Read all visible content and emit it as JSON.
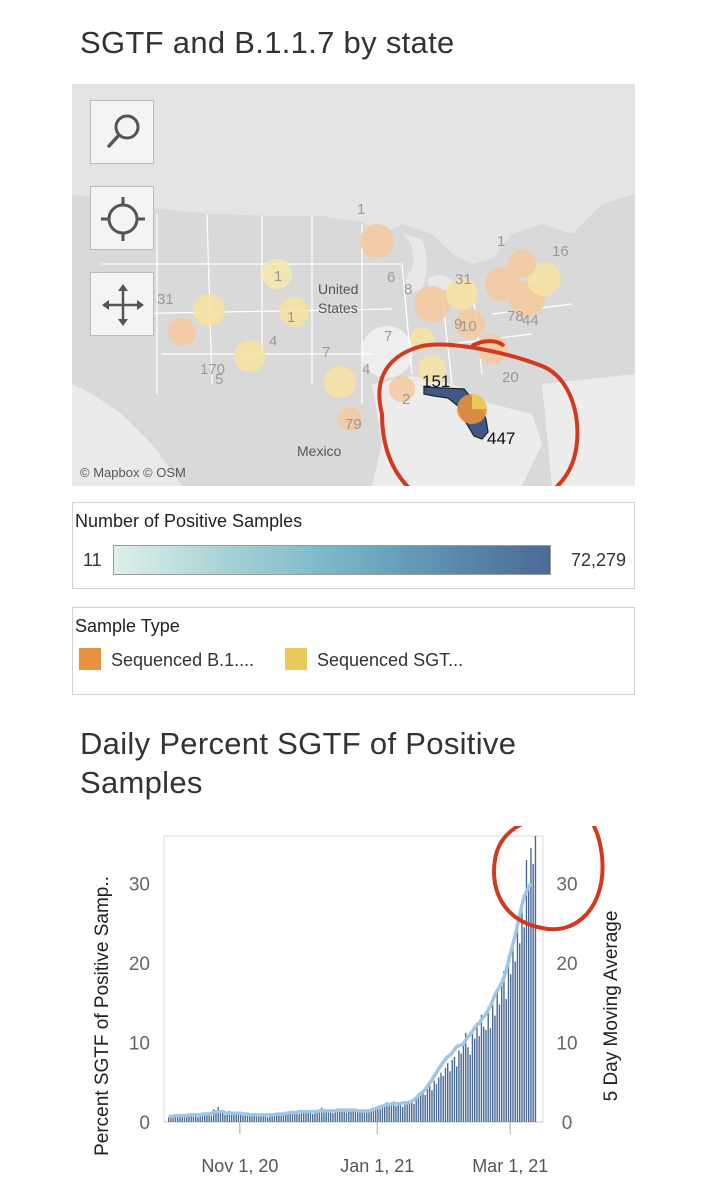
{
  "map_section": {
    "title": "SGTF and B.1.1.7 by state",
    "country_labels": {
      "us": "United States",
      "mexico": "Mexico"
    },
    "attribution": "© Mapbox  © OSM",
    "state_labels": [
      "1",
      "1",
      "1",
      "31",
      "1",
      "16",
      "6",
      "8",
      "31",
      "7",
      "9",
      "10",
      "78",
      "44",
      "4",
      "170",
      "5",
      "7",
      "4",
      "2",
      "151",
      "20",
      "79",
      "447"
    ],
    "controls": [
      {
        "name": "search",
        "icon": "search-icon"
      },
      {
        "name": "locate",
        "icon": "crosshair-icon"
      },
      {
        "name": "pan",
        "icon": "move-arrows-icon"
      }
    ]
  },
  "color_legend": {
    "title": "Number of Positive Samples",
    "min": "11",
    "max": "72,279"
  },
  "type_legend": {
    "title": "Sample Type",
    "items": [
      {
        "label": "Sequenced B.1....",
        "color": "#e8913e"
      },
      {
        "label": "Sequenced SGT...",
        "color": "#e9c95a"
      }
    ]
  },
  "chart_data": {
    "type": "bar",
    "title": "Daily Percent SGTF of Positive Samples",
    "ylabel": "Percent SGTF of Positive Samp..",
    "y2label": "5 Day Moving Average",
    "x_ticks": [
      "Nov 1, 20",
      "Jan 1, 21",
      "Mar 1, 21"
    ],
    "y_ticks": [
      "0",
      "10",
      "20",
      "30"
    ],
    "ylim": [
      0,
      36
    ],
    "x_range": [
      "2020-10-01",
      "2021-03-12"
    ],
    "bar_color": "#4a6a96",
    "line_color": "#9ec6e6",
    "series": [
      {
        "name": "Percent SGTF of Positive Samp..",
        "values": [
          0.6,
          0.9,
          0.5,
          0.8,
          1.0,
          0.7,
          0.6,
          0.9,
          1.0,
          0.8,
          0.7,
          1.1,
          1.0,
          0.6,
          0.9,
          1.2,
          1.0,
          0.9,
          1.1,
          0.8,
          1.6,
          1.2,
          1.9,
          1.3,
          1.1,
          0.9,
          1.0,
          1.4,
          1.2,
          1.0,
          1.3,
          1.1,
          1.0,
          0.8,
          1.2,
          1.0,
          1.1,
          0.9,
          0.8,
          1.0,
          0.7,
          0.9,
          1.1,
          0.8,
          0.6,
          0.9,
          1.0,
          0.8,
          1.1,
          1.2,
          0.8,
          1.0,
          1.3,
          1.0,
          1.4,
          1.1,
          1.2,
          1.4,
          1.0,
          1.5,
          1.3,
          1.1,
          1.2,
          1.5,
          1.0,
          1.3,
          1.2,
          1.4,
          1.8,
          1.3,
          1.2,
          1.6,
          1.5,
          1.1,
          1.4,
          1.7,
          1.3,
          1.5,
          1.7,
          1.2,
          1.6,
          1.5,
          1.4,
          1.3,
          1.6,
          1.2,
          1.4,
          1.5,
          1.2,
          1.3,
          1.4,
          1.6,
          1.8,
          2.0,
          1.6,
          2.2,
          1.9,
          2.5,
          2.1,
          2.3,
          2.6,
          2.0,
          2.4,
          2.2,
          1.9,
          2.6,
          2.3,
          2.5,
          2.7,
          2.3,
          3.0,
          3.3,
          3.5,
          4.0,
          3.4,
          4.2,
          4.6,
          4.0,
          5.2,
          4.8,
          5.6,
          6.2,
          5.8,
          6.8,
          7.4,
          6.4,
          7.8,
          8.2,
          7.0,
          9.0,
          8.6,
          10.2,
          11.2,
          9.4,
          8.5,
          11.5,
          10.5,
          12.5,
          10.8,
          13.5,
          12.0,
          11.6,
          14.5,
          11.8,
          15.2,
          13.4,
          16.8,
          14.8,
          17.5,
          19.0,
          15.5,
          21.0,
          18.6,
          22.5,
          20.2,
          25.5,
          22.5,
          27.5,
          24.5,
          33.0,
          29.5,
          34.5,
          32.5,
          36.0
        ]
      },
      {
        "name": "5 Day Moving Average",
        "values": [
          0.7,
          0.7,
          0.7,
          0.8,
          0.8,
          0.8,
          0.8,
          0.8,
          0.8,
          0.9,
          0.9,
          0.9,
          0.9,
          0.9,
          0.9,
          1.0,
          1.0,
          1.0,
          1.0,
          1.1,
          1.2,
          1.3,
          1.3,
          1.3,
          1.3,
          1.2,
          1.1,
          1.1,
          1.1,
          1.1,
          1.1,
          1.1,
          1.1,
          1.0,
          1.0,
          1.0,
          0.9,
          0.9,
          0.9,
          0.9,
          0.9,
          0.9,
          0.9,
          0.9,
          0.9,
          0.9,
          0.9,
          0.9,
          1.0,
          1.0,
          1.0,
          1.0,
          1.1,
          1.1,
          1.2,
          1.2,
          1.2,
          1.2,
          1.3,
          1.3,
          1.3,
          1.3,
          1.3,
          1.3,
          1.3,
          1.3,
          1.3,
          1.4,
          1.4,
          1.4,
          1.4,
          1.4,
          1.4,
          1.4,
          1.4,
          1.4,
          1.5,
          1.5,
          1.5,
          1.5,
          1.5,
          1.5,
          1.5,
          1.5,
          1.4,
          1.4,
          1.4,
          1.4,
          1.4,
          1.4,
          1.5,
          1.6,
          1.7,
          1.8,
          1.9,
          2.0,
          2.1,
          2.2,
          2.2,
          2.3,
          2.3,
          2.3,
          2.3,
          2.3,
          2.4,
          2.4,
          2.4,
          2.5,
          2.6,
          2.8,
          3.0,
          3.3,
          3.6,
          3.8,
          4.1,
          4.5,
          4.9,
          5.3,
          5.8,
          6.2,
          6.7,
          7.1,
          7.5,
          7.9,
          8.2,
          8.4,
          8.7,
          9.1,
          9.5,
          9.6,
          9.7,
          9.8,
          10.3,
          10.7,
          11.0,
          11.4,
          11.9,
          12.2,
          12.4,
          12.9,
          13.2,
          13.6,
          14.1,
          14.6,
          15.3,
          16.0,
          16.5,
          17.0,
          17.5,
          18.2,
          19.1,
          20.2,
          21.3,
          22.4,
          23.5,
          24.8,
          26.0,
          27.3,
          28.4,
          29.0,
          29.6,
          30.0
        ]
      }
    ]
  }
}
